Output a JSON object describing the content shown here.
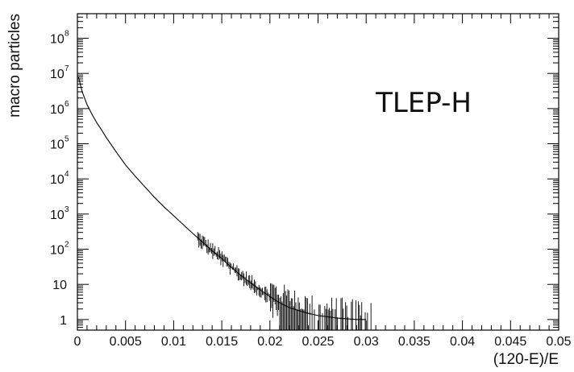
{
  "chart_data": {
    "type": "line",
    "title": "",
    "xlabel": "(120-E)/E",
    "ylabel": "macro particles",
    "xlim": [
      0,
      0.05
    ],
    "ylim": [
      0.5,
      500000000
    ],
    "yscale": "log",
    "grid": false,
    "annotations": [
      {
        "text": "TLEP-H",
        "x": 0.031,
        "y": 800000
      }
    ],
    "x_ticks": [
      {
        "value": 0,
        "label": "0"
      },
      {
        "value": 0.005,
        "label": "0.005"
      },
      {
        "value": 0.01,
        "label": "0.01"
      },
      {
        "value": 0.015,
        "label": "0.015"
      },
      {
        "value": 0.02,
        "label": "0.02"
      },
      {
        "value": 0.025,
        "label": "0.025"
      },
      {
        "value": 0.03,
        "label": "0.03"
      },
      {
        "value": 0.035,
        "label": "0.035"
      },
      {
        "value": 0.04,
        "label": "0.04"
      },
      {
        "value": 0.045,
        "label": "0.045"
      },
      {
        "value": 0.05,
        "label": "0.05"
      }
    ],
    "y_ticks": [
      {
        "value": 1,
        "base": "1",
        "exp": ""
      },
      {
        "value": 10,
        "base": "10",
        "exp": ""
      },
      {
        "value": 100,
        "base": "10",
        "exp": "2"
      },
      {
        "value": 1000,
        "base": "10",
        "exp": "3"
      },
      {
        "value": 10000,
        "base": "10",
        "exp": "4"
      },
      {
        "value": 100000,
        "base": "10",
        "exp": "5"
      },
      {
        "value": 1000000,
        "base": "10",
        "exp": "6"
      },
      {
        "value": 10000000,
        "base": "10",
        "exp": "7"
      },
      {
        "value": 100000000,
        "base": "10",
        "exp": "8"
      }
    ],
    "series": [
      {
        "color": "#000000",
        "x": [
          0.0001,
          0.0005,
          0.001,
          0.0015,
          0.002,
          0.0025,
          0.003,
          0.004,
          0.005,
          0.006,
          0.007,
          0.008,
          0.009,
          0.01,
          0.011,
          0.012,
          0.013,
          0.014,
          0.015,
          0.016,
          0.017,
          0.018,
          0.019,
          0.02,
          0.021,
          0.022,
          0.023,
          0.024,
          0.025,
          0.026,
          0.027,
          0.028,
          0.029,
          0.03
        ],
        "y": [
          8000000,
          3000000,
          1300000,
          700000,
          400000,
          250000,
          150000,
          60000,
          25000,
          12000,
          6000,
          3000,
          1600,
          900,
          500,
          280,
          160,
          90,
          55,
          30,
          18,
          11,
          7,
          4.5,
          3,
          2.2,
          1.8,
          1.5,
          1.3,
          1.2,
          1.1,
          1.05,
          1,
          1
        ]
      }
    ]
  }
}
